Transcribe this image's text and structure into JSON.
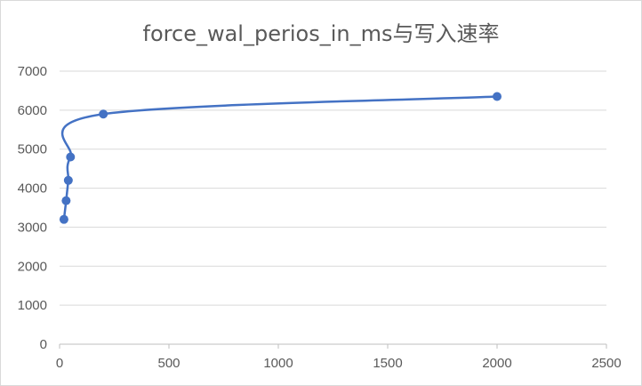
{
  "chart_data": {
    "type": "scatter",
    "title": "force_wal_perios_in_ms与写入速率",
    "xlabel": "",
    "ylabel": "",
    "xlim": [
      0,
      2500
    ],
    "ylim": [
      0,
      7000
    ],
    "xticks": [
      0,
      500,
      1000,
      1500,
      2000,
      2500
    ],
    "yticks": [
      0,
      1000,
      2000,
      3000,
      4000,
      5000,
      6000,
      7000
    ],
    "grid": "horizontal",
    "legend": "none",
    "smooth_line": true,
    "series": [
      {
        "color": "#4472c4",
        "points": [
          {
            "x": 20,
            "y": 3200
          },
          {
            "x": 30,
            "y": 3680
          },
          {
            "x": 40,
            "y": 4200
          },
          {
            "x": 50,
            "y": 4800
          },
          {
            "x": 200,
            "y": 5900
          },
          {
            "x": 2000,
            "y": 6350
          }
        ]
      }
    ]
  }
}
